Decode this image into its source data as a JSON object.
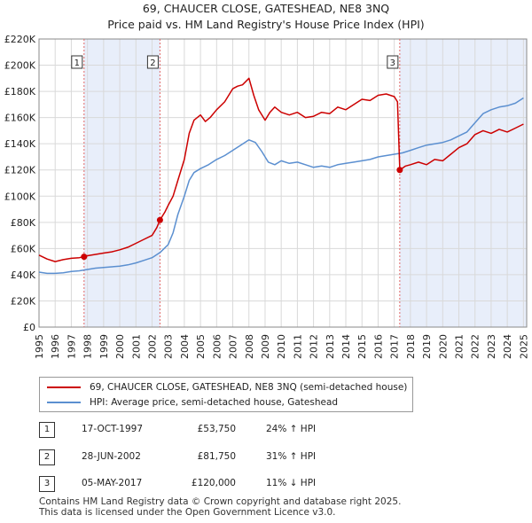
{
  "header": {
    "title": "69, CHAUCER CLOSE, GATESHEAD, NE8 3NQ",
    "subtitle": "Price paid vs. HM Land Registry's House Price Index (HPI)"
  },
  "colors": {
    "property": "#cc0000",
    "hpi": "#5b8fd0",
    "shade": "#e8eefa",
    "vline": "#e06666"
  },
  "chart_data": {
    "type": "line",
    "title": "Price paid vs. HM Land Registry's House Price Index (HPI)",
    "xlabel": "",
    "ylabel": "",
    "xlim": [
      1995,
      2025.2
    ],
    "ylim": [
      0,
      220000
    ],
    "y_ticks": [
      0,
      20000,
      40000,
      60000,
      80000,
      100000,
      120000,
      140000,
      160000,
      180000,
      200000,
      220000
    ],
    "y_tick_labels": [
      "£0",
      "£20K",
      "£40K",
      "£60K",
      "£80K",
      "£100K",
      "£120K",
      "£140K",
      "£160K",
      "£180K",
      "£200K",
      "£220K"
    ],
    "x_ticks": [
      1995,
      1996,
      1997,
      1998,
      1999,
      2000,
      2001,
      2002,
      2003,
      2004,
      2005,
      2006,
      2007,
      2008,
      2009,
      2010,
      2011,
      2012,
      2013,
      2014,
      2015,
      2016,
      2017,
      2018,
      2019,
      2020,
      2021,
      2022,
      2023,
      2024,
      2025
    ],
    "x_tick_labels": [
      "1995",
      "1996",
      "1997",
      "1998",
      "1999",
      "2000",
      "2001",
      "2002",
      "2003",
      "2004",
      "2005",
      "2006",
      "2007",
      "2008",
      "2009",
      "2010",
      "2011",
      "2012",
      "2013",
      "2014",
      "2015",
      "2016",
      "2017",
      "2018",
      "2019",
      "2020",
      "2021",
      "2022",
      "2023",
      "2024",
      "2025"
    ],
    "grid": true,
    "shaded_ranges": [
      [
        1997.79,
        2002.49
      ],
      [
        2017.34,
        2025.2
      ]
    ],
    "series": [
      {
        "name": "69, CHAUCER CLOSE, GATESHEAD, NE8 3NQ (semi-detached house)",
        "x": [
          1995.0,
          1995.5,
          1996.0,
          1996.5,
          1997.0,
          1997.5,
          1997.79,
          1998.0,
          1998.5,
          1999.0,
          1999.5,
          2000.0,
          2000.5,
          2001.0,
          2001.5,
          2002.0,
          2002.3,
          2002.49,
          2002.8,
          2003.0,
          2003.3,
          2003.6,
          2004.0,
          2004.3,
          2004.6,
          2005.0,
          2005.3,
          2005.6,
          2006.0,
          2006.5,
          2007.0,
          2007.3,
          2007.6,
          2008.0,
          2008.3,
          2008.6,
          2009.0,
          2009.3,
          2009.6,
          2010.0,
          2010.5,
          2011.0,
          2011.5,
          2012.0,
          2012.5,
          2013.0,
          2013.5,
          2014.0,
          2014.5,
          2015.0,
          2015.5,
          2016.0,
          2016.5,
          2017.0,
          2017.2,
          2017.34,
          2017.7,
          2018.0,
          2018.5,
          2019.0,
          2019.5,
          2020.0,
          2020.5,
          2021.0,
          2021.5,
          2022.0,
          2022.5,
          2023.0,
          2023.5,
          2024.0,
          2024.5,
          2025.0
        ],
        "values": [
          55000,
          52000,
          50000,
          51500,
          52500,
          53000,
          53750,
          54500,
          55500,
          56500,
          57500,
          59000,
          61000,
          64000,
          67000,
          70000,
          76000,
          81750,
          88000,
          93000,
          100000,
          112000,
          128000,
          148000,
          158000,
          162000,
          157000,
          160000,
          166000,
          172000,
          182000,
          184000,
          185000,
          190000,
          177000,
          166000,
          158000,
          164000,
          168000,
          164000,
          162000,
          164000,
          160000,
          161000,
          164000,
          163000,
          168000,
          166000,
          170000,
          174000,
          173000,
          177000,
          178000,
          176000,
          172000,
          120000,
          123000,
          124000,
          126000,
          124000,
          128000,
          127000,
          132000,
          137000,
          140000,
          147000,
          150000,
          148000,
          151000,
          149000,
          152000,
          155000
        ]
      },
      {
        "name": "HPI: Average price, semi-detached house, Gateshead",
        "x": [
          1995.0,
          1995.5,
          1996.0,
          1996.5,
          1997.0,
          1997.5,
          1998.0,
          1998.5,
          1999.0,
          1999.5,
          2000.0,
          2000.5,
          2001.0,
          2001.5,
          2002.0,
          2002.5,
          2003.0,
          2003.3,
          2003.6,
          2004.0,
          2004.3,
          2004.6,
          2005.0,
          2005.5,
          2006.0,
          2006.5,
          2007.0,
          2007.5,
          2008.0,
          2008.4,
          2008.8,
          2009.2,
          2009.6,
          2010.0,
          2010.5,
          2011.0,
          2011.5,
          2012.0,
          2012.5,
          2013.0,
          2013.5,
          2014.0,
          2014.5,
          2015.0,
          2015.5,
          2016.0,
          2016.5,
          2017.0,
          2017.5,
          2018.0,
          2018.5,
          2019.0,
          2019.5,
          2020.0,
          2020.5,
          2021.0,
          2021.5,
          2022.0,
          2022.5,
          2023.0,
          2023.5,
          2024.0,
          2024.5,
          2025.0
        ],
        "values": [
          42000,
          41000,
          41000,
          41500,
          42500,
          43000,
          44000,
          45000,
          45500,
          46000,
          46500,
          47500,
          49000,
          51000,
          53000,
          57000,
          63000,
          72000,
          86000,
          100000,
          112000,
          118000,
          121000,
          124000,
          128000,
          131000,
          135000,
          139000,
          143000,
          141000,
          134000,
          126000,
          124000,
          127000,
          125000,
          126000,
          124000,
          122000,
          123000,
          122000,
          124000,
          125000,
          126000,
          127000,
          128000,
          130000,
          131000,
          132000,
          133000,
          135000,
          137000,
          139000,
          140000,
          141000,
          143000,
          146000,
          149000,
          156000,
          163000,
          166000,
          168000,
          169000,
          171000,
          175000
        ]
      }
    ],
    "markers": [
      {
        "label": "1",
        "x": 1997.79,
        "value": 53750
      },
      {
        "label": "2",
        "x": 2002.49,
        "value": 81750
      },
      {
        "label": "3",
        "x": 2017.34,
        "value": 120000
      }
    ]
  },
  "legend": {
    "items": [
      {
        "label": "69, CHAUCER CLOSE, GATESHEAD, NE8 3NQ (semi-detached house)"
      },
      {
        "label": "HPI: Average price, semi-detached house, Gateshead"
      }
    ]
  },
  "transactions": [
    {
      "num": "1",
      "date": "17-OCT-1997",
      "price": "£53,750",
      "hpi": "24% ↑ HPI"
    },
    {
      "num": "2",
      "date": "28-JUN-2002",
      "price": "£81,750",
      "hpi": "31% ↑ HPI"
    },
    {
      "num": "3",
      "date": "05-MAY-2017",
      "price": "£120,000",
      "hpi": "11% ↓ HPI"
    }
  ],
  "footer": {
    "line1": "Contains HM Land Registry data © Crown copyright and database right 2025.",
    "line2": "This data is licensed under the Open Government Licence v3.0."
  }
}
